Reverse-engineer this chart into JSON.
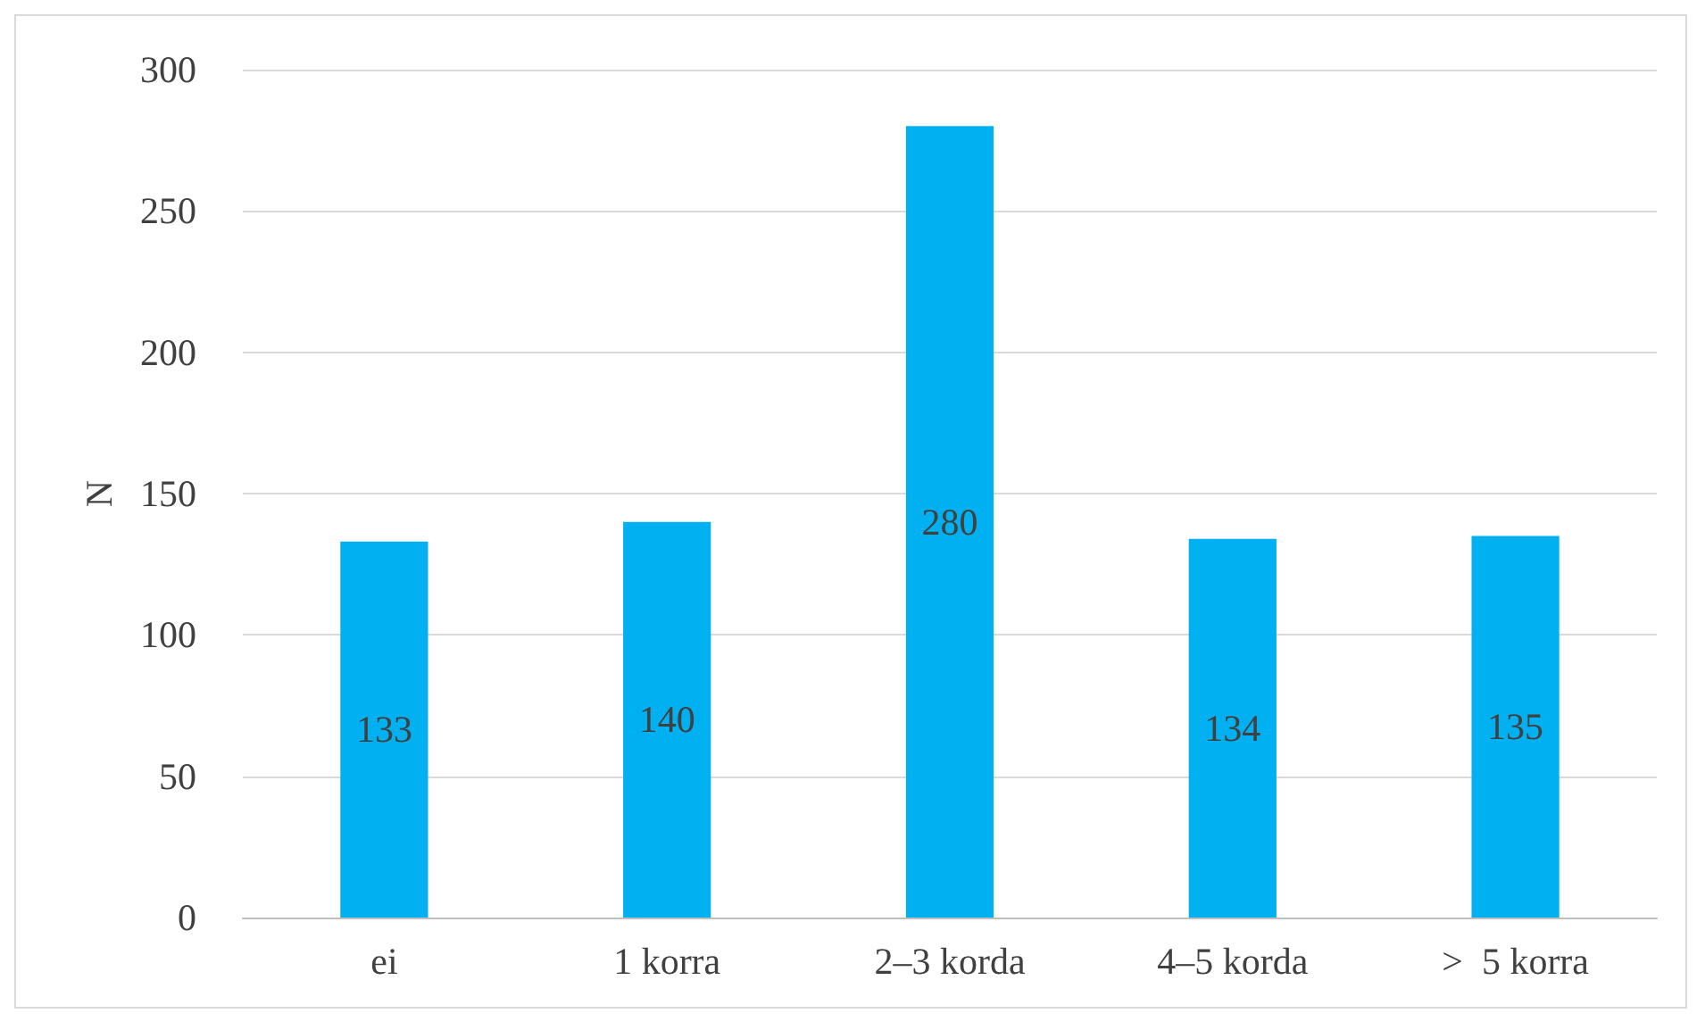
{
  "chart_data": {
    "type": "bar",
    "ylabel": "N",
    "categories": [
      "ei",
      "1 korra",
      "2–3 korda",
      "4–5 korda",
      ">  5 korra"
    ],
    "values": [
      133,
      140,
      280,
      134,
      135
    ],
    "color": "#00b0f0",
    "ylim": [
      0,
      300
    ],
    "yticks": [
      0,
      50,
      100,
      150,
      200,
      250,
      300
    ],
    "grid": "y",
    "data_labels": true
  }
}
